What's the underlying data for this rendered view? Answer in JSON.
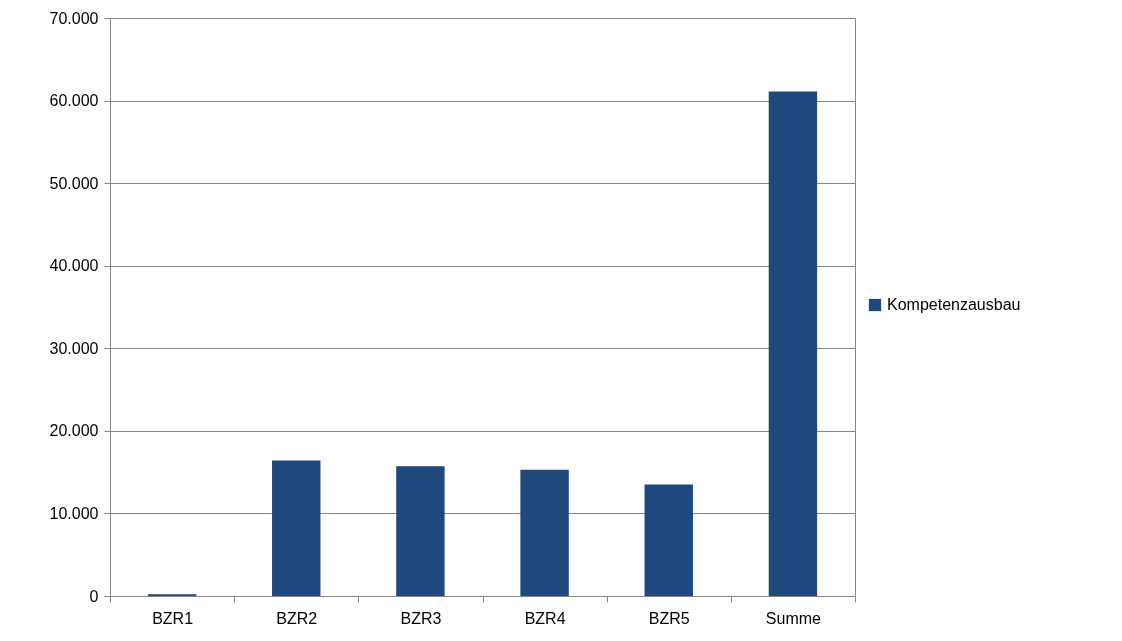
{
  "chart_data": {
    "type": "bar",
    "categories": [
      "BZR1",
      "BZR2",
      "BZR3",
      "BZR4",
      "BZR5",
      "Summe"
    ],
    "series": [
      {
        "name": "Kompetenzausbau",
        "color": "#1f497d",
        "values": [
          200,
          16400,
          15700,
          15300,
          13500,
          61100
        ]
      }
    ],
    "ylim": [
      0,
      70000
    ],
    "yticks": [
      {
        "value": 0,
        "label": "0"
      },
      {
        "value": 10000,
        "label": "10.000"
      },
      {
        "value": 20000,
        "label": "20.000"
      },
      {
        "value": 30000,
        "label": "30.000"
      },
      {
        "value": 40000,
        "label": "40.000"
      },
      {
        "value": 50000,
        "label": "50.000"
      },
      {
        "value": 60000,
        "label": "60.000"
      },
      {
        "value": 70000,
        "label": "70.000"
      }
    ],
    "grid": "y",
    "legend": "right"
  }
}
